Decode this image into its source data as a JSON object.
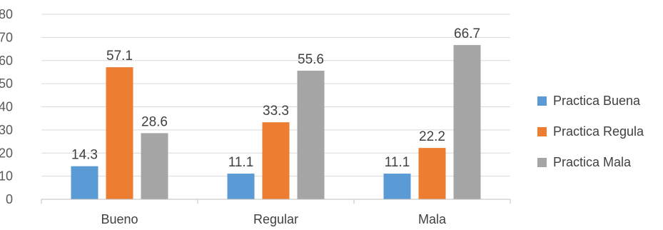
{
  "chart_data": {
    "type": "bar",
    "categories": [
      "Bueno",
      "Regular",
      "Mala"
    ],
    "series": [
      {
        "name": "Practica Buena",
        "values": [
          14.3,
          11.1,
          11.1
        ],
        "color": "#5b9bd5"
      },
      {
        "name": "Practica Regula",
        "values": [
          57.1,
          33.3,
          22.2
        ],
        "color": "#ed7d31"
      },
      {
        "name": "Practica Mala",
        "values": [
          28.6,
          55.6,
          66.7
        ],
        "color": "#a5a5a5"
      }
    ],
    "ylim": [
      0,
      80
    ],
    "yticks": [
      0,
      10,
      20,
      30,
      40,
      50,
      60,
      70,
      80
    ],
    "grid": true,
    "legend_position": "right",
    "title": "",
    "xlabel": "",
    "ylabel": ""
  }
}
